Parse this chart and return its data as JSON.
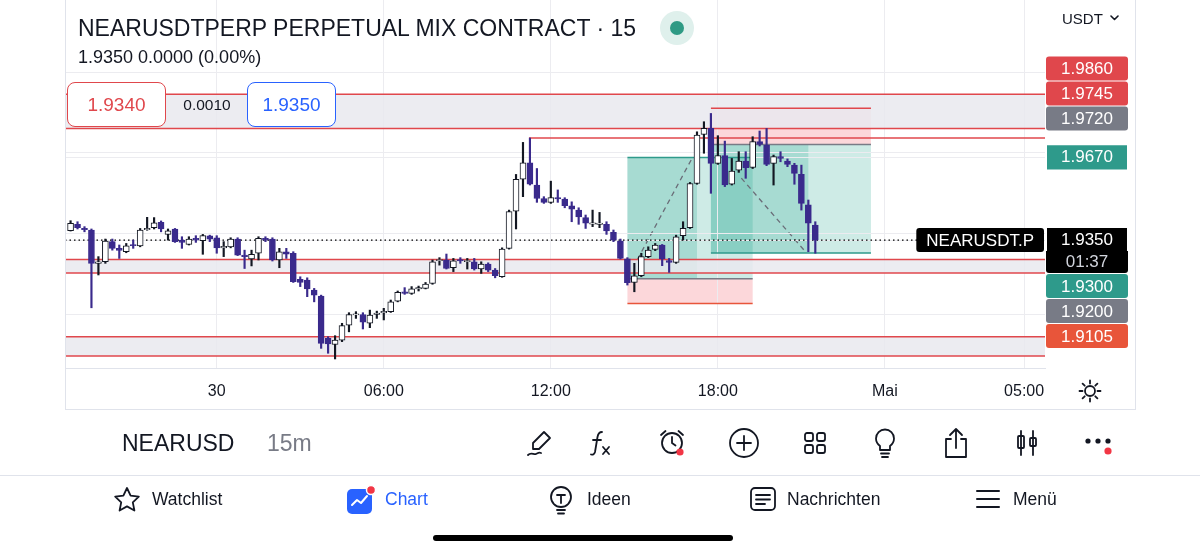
{
  "chart_data": {
    "type": "candlestick",
    "title": "NEARUSDTPERP PERPETUAL MIX CONTRACT · 15",
    "subtitle": "1.9350 0.0000 (0.00%)",
    "annotations": [
      "1.9340",
      "0.0010",
      "1.9350",
      "USDT",
      "NEARUSDT.P",
      "01:37",
      "NEARUSD",
      "15m",
      "Watchlist",
      "Chart",
      "Ideen",
      "Nachrichten",
      "Menü"
    ],
    "x": [
      "--04-29T18:45",
      "--04-29T19:00",
      "--04-29T19:15",
      "--04-29T19:30",
      "--04-29T19:45",
      "--04-29T20:00",
      "--04-29T20:15",
      "--04-29T20:30",
      "--04-29T20:45",
      "--04-29T21:00",
      "--04-29T21:15",
      "--04-29T21:30",
      "--04-29T21:45",
      "--04-29T22:00",
      "--04-29T22:15",
      "--04-29T22:30",
      "--04-29T22:45",
      "--04-29T23:00",
      "--04-29T23:15",
      "--04-29T23:30",
      "--04-29T23:45",
      "--04-30T00:00",
      "--04-30T00:15",
      "--04-30T00:30",
      "--04-30T00:45",
      "--04-30T01:00",
      "--04-30T01:15",
      "--04-30T01:30",
      "--04-30T01:45",
      "--04-30T02:00",
      "--04-30T02:15",
      "--04-30T02:30",
      "--04-30T02:45",
      "--04-30T03:00",
      "--04-30T03:15",
      "--04-30T03:30",
      "--04-30T03:45",
      "--04-30T04:00",
      "--04-30T04:15",
      "--04-30T04:30",
      "--04-30T04:45",
      "--04-30T05:00",
      "--04-30T05:15",
      "--04-30T05:30",
      "--04-30T05:45",
      "--04-30T06:00",
      "--04-30T06:15",
      "--04-30T06:30",
      "--04-30T06:45",
      "--04-30T07:00",
      "--04-30T07:15",
      "--04-30T07:30",
      "--04-30T07:45",
      "--04-30T08:00",
      "--04-30T08:15",
      "--04-30T08:30",
      "--04-30T08:45",
      "--04-30T09:00",
      "--04-30T09:15",
      "--04-30T09:30",
      "--04-30T09:45",
      "--04-30T10:00",
      "--04-30T10:15",
      "--04-30T10:30",
      "--04-30T10:45",
      "--04-30T11:00",
      "--04-30T11:15",
      "--04-30T11:30",
      "--04-30T11:45",
      "--04-30T12:00",
      "--04-30T12:15",
      "--04-30T12:30",
      "--04-30T12:45",
      "--04-30T13:00",
      "--04-30T13:15",
      "--04-30T13:30",
      "--04-30T13:45",
      "--04-30T14:00",
      "--04-30T14:15",
      "--04-30T14:30",
      "--04-30T14:45",
      "--04-30T15:00",
      "--04-30T15:15",
      "--04-30T15:30",
      "--04-30T15:45",
      "--04-30T16:00",
      "--04-30T16:15",
      "--04-30T16:30",
      "--04-30T16:45",
      "--04-30T17:00",
      "--04-30T17:15",
      "--04-30T17:30",
      "--04-30T17:45",
      "--04-30T18:00",
      "--04-30T18:15",
      "--04-30T18:30",
      "--04-30T18:45",
      "--04-30T19:00",
      "--04-30T19:15",
      "--04-30T19:30",
      "--04-30T19:45",
      "--04-30T20:00",
      "--04-30T20:15",
      "--04-30T20:30",
      "--04-30T20:45",
      "--04-30T21:00",
      "--04-30T21:15",
      "--04-30T21:30"
    ],
    "ohlc": [
      [
        1.9386,
        1.9425,
        1.9385,
        1.9415
      ],
      [
        1.9411,
        1.9421,
        1.9393,
        1.9398
      ],
      [
        1.9395,
        1.9402,
        1.9382,
        1.939
      ],
      [
        1.9389,
        1.9393,
        1.9088,
        1.926
      ],
      [
        1.926,
        1.9286,
        1.9215,
        1.9266
      ],
      [
        1.9266,
        1.9354,
        1.926,
        1.9346
      ],
      [
        1.9344,
        1.9354,
        1.9311,
        1.9318
      ],
      [
        1.9318,
        1.9331,
        1.9279,
        1.931
      ],
      [
        1.9305,
        1.9337,
        1.9301,
        1.9328
      ],
      [
        1.9333,
        1.935,
        1.9318,
        1.9328
      ],
      [
        1.9327,
        1.9395,
        1.9324,
        1.9389
      ],
      [
        1.939,
        1.9438,
        1.9388,
        1.9395
      ],
      [
        1.9398,
        1.9437,
        1.9393,
        1.9417
      ],
      [
        1.9419,
        1.9424,
        1.9382,
        1.9393
      ],
      [
        1.9372,
        1.9393,
        1.935,
        1.9386
      ],
      [
        1.9393,
        1.9395,
        1.9341,
        1.9344
      ],
      [
        1.935,
        1.9363,
        1.9318,
        1.9341
      ],
      [
        1.9333,
        1.9363,
        1.9331,
        1.9354
      ],
      [
        1.9357,
        1.9367,
        1.9341,
        1.935
      ],
      [
        1.9348,
        1.9372,
        1.9295,
        1.9367
      ],
      [
        1.9366,
        1.9369,
        1.9344,
        1.9354
      ],
      [
        1.9359,
        1.9367,
        1.9299,
        1.932
      ],
      [
        1.932,
        1.9344,
        1.9286,
        1.9326
      ],
      [
        1.9324,
        1.9359,
        1.932,
        1.9354
      ],
      [
        1.9354,
        1.9359,
        1.929,
        1.9292
      ],
      [
        1.9292,
        1.9311,
        1.924,
        1.9286
      ],
      [
        1.9277,
        1.9311,
        1.925,
        1.9295
      ],
      [
        1.9299,
        1.9363,
        1.9273,
        1.9357
      ],
      [
        1.9357,
        1.9363,
        1.9344,
        1.935
      ],
      [
        1.9354,
        1.9359,
        1.9269,
        1.9273
      ],
      [
        1.9273,
        1.9318,
        1.9243,
        1.9305
      ],
      [
        1.9305,
        1.9318,
        1.9279,
        1.9295
      ],
      [
        1.9299,
        1.9305,
        1.9186,
        1.9189
      ],
      [
        1.9198,
        1.9208,
        1.917,
        1.9186
      ],
      [
        1.9195,
        1.9204,
        1.9131,
        1.9161
      ],
      [
        1.9157,
        1.9163,
        1.9111,
        1.9137
      ],
      [
        1.9133,
        1.9137,
        1.8931,
        1.895
      ],
      [
        1.897,
        1.8976,
        1.8912,
        1.8948
      ],
      [
        1.8946,
        1.898,
        1.889,
        1.8963
      ],
      [
        1.8963,
        1.9028,
        1.8957,
        1.9019
      ],
      [
        1.9021,
        1.9069,
        1.8995,
        1.9062
      ],
      [
        1.906,
        1.9073,
        1.9047,
        1.9065
      ],
      [
        1.9062,
        1.9069,
        1.9006,
        1.9032
      ],
      [
        1.9028,
        1.9079,
        1.9011,
        1.906
      ],
      [
        1.9062,
        1.9075,
        1.9047,
        1.9068
      ],
      [
        1.9068,
        1.9086,
        1.9041,
        1.9074
      ],
      [
        1.9073,
        1.9118,
        1.907,
        1.9111
      ],
      [
        1.9114,
        1.9153,
        1.9111,
        1.9148
      ],
      [
        1.915,
        1.9166,
        1.914,
        1.9144
      ],
      [
        1.9144,
        1.917,
        1.914,
        1.9161
      ],
      [
        1.9161,
        1.9172,
        1.9153,
        1.9166
      ],
      [
        1.9163,
        1.9186,
        1.9161,
        1.918
      ],
      [
        1.9182,
        1.9273,
        1.9179,
        1.9266
      ],
      [
        1.927,
        1.9282,
        1.9253,
        1.9275
      ],
      [
        1.9273,
        1.9296,
        1.9238,
        1.924
      ],
      [
        1.9243,
        1.9279,
        1.9228,
        1.927
      ],
      [
        1.9275,
        1.9282,
        1.926,
        1.9269
      ],
      [
        1.9266,
        1.9279,
        1.9238,
        1.9271
      ],
      [
        1.9266,
        1.9279,
        1.9234,
        1.9238
      ],
      [
        1.9238,
        1.9266,
        1.9221,
        1.9257
      ],
      [
        1.9257,
        1.9262,
        1.9228,
        1.9234
      ],
      [
        1.9234,
        1.924,
        1.9204,
        1.9212
      ],
      [
        1.9208,
        1.932,
        1.9206,
        1.9315
      ],
      [
        1.9318,
        1.9466,
        1.9315,
        1.946
      ],
      [
        1.9462,
        1.9604,
        1.9393,
        1.9585
      ],
      [
        1.9586,
        1.9728,
        1.9518,
        1.9649
      ],
      [
        1.9649,
        1.9745,
        1.9563,
        1.9566
      ],
      [
        1.9563,
        1.9627,
        1.9496,
        1.9511
      ],
      [
        1.9511,
        1.9518,
        1.9492,
        1.9496
      ],
      [
        1.9496,
        1.9578,
        1.9492,
        1.9514
      ],
      [
        1.9514,
        1.9544,
        1.9496,
        1.9509
      ],
      [
        1.9509,
        1.9514,
        1.9475,
        1.9483
      ],
      [
        1.9483,
        1.9498,
        1.9421,
        1.947
      ],
      [
        1.9466,
        1.9475,
        1.9411,
        1.944
      ],
      [
        1.9437,
        1.9447,
        1.9395,
        1.9415
      ],
      [
        1.9412,
        1.9466,
        1.9402,
        1.9417
      ],
      [
        1.9411,
        1.9457,
        1.9398,
        1.9416
      ],
      [
        1.9411,
        1.9421,
        1.9372,
        1.9385
      ],
      [
        1.938,
        1.9389,
        1.9344,
        1.935
      ],
      [
        1.9346,
        1.9354,
        1.9277,
        1.9279
      ],
      [
        1.9277,
        1.9282,
        1.9176,
        1.9185
      ],
      [
        1.9186,
        1.926,
        1.915,
        1.9212
      ],
      [
        1.9212,
        1.9299,
        1.9208,
        1.9286
      ],
      [
        1.9286,
        1.9324,
        1.9282,
        1.9311
      ],
      [
        1.9314,
        1.9337,
        1.9309,
        1.9331
      ],
      [
        1.9331,
        1.9333,
        1.9251,
        1.9277
      ],
      [
        1.9271,
        1.9279,
        1.9225,
        1.9264
      ],
      [
        1.9264,
        1.9369,
        1.926,
        1.9363
      ],
      [
        1.9367,
        1.9421,
        1.935,
        1.9395
      ],
      [
        1.9398,
        1.9573,
        1.9395,
        1.9569
      ],
      [
        1.9569,
        1.9769,
        1.9566,
        1.9756
      ],
      [
        1.9759,
        1.9808,
        1.9686,
        1.9782
      ],
      [
        1.9782,
        1.984,
        1.9531,
        1.9647
      ],
      [
        1.9647,
        1.9754,
        1.9643,
        1.9677
      ],
      [
        1.9677,
        1.9733,
        1.9557,
        1.9563
      ],
      [
        1.9566,
        1.9666,
        1.9563,
        1.9617
      ],
      [
        1.9621,
        1.9692,
        1.9612,
        1.9656
      ],
      [
        1.9656,
        1.9692,
        1.9589,
        1.963
      ],
      [
        1.9631,
        1.975,
        1.9627,
        1.9731
      ],
      [
        1.9731,
        1.9772,
        1.9714,
        1.972
      ],
      [
        1.9718,
        1.9782,
        1.9638,
        1.9643
      ],
      [
        1.9647,
        1.9679,
        1.9563,
        1.9673
      ],
      [
        1.9673,
        1.9692,
        1.9653,
        1.9666
      ],
      [
        1.9656,
        1.9664,
        1.9634,
        1.9643
      ],
      [
        1.964,
        1.9647,
        1.9566,
        1.9608
      ],
      [
        1.9604,
        1.964,
        1.9466,
        1.9492
      ],
      [
        1.9486,
        1.9505,
        1.9305,
        1.9415
      ],
      [
        1.9408,
        1.9421,
        1.9299,
        1.935
      ]
    ],
    "colors": [
      "#131722",
      "#3a2a8c",
      "#3a2a8c",
      "#3a2a8c",
      "#131722",
      "#131722",
      "#3a2a8c",
      "#3a2a8c",
      "#131722",
      "#3a2a8c",
      "#131722",
      "#131722",
      "#131722",
      "#3a2a8c",
      "#131722",
      "#3a2a8c",
      "#3a2a8c",
      "#131722",
      "#3a2a8c",
      "#131722",
      "#3a2a8c",
      "#3a2a8c",
      "#131722",
      "#131722",
      "#3a2a8c",
      "#3a2a8c",
      "#131722",
      "#131722",
      "#3a2a8c",
      "#3a2a8c",
      "#131722",
      "#3a2a8c",
      "#3a2a8c",
      "#3a2a8c",
      "#3a2a8c",
      "#3a2a8c",
      "#3a2a8c",
      "#3a2a8c",
      "#131722",
      "#131722",
      "#131722",
      "#131722",
      "#3a2a8c",
      "#131722",
      "#131722",
      "#131722",
      "#131722",
      "#131722",
      "#3a2a8c",
      "#131722",
      "#131722",
      "#131722",
      "#131722",
      "#131722",
      "#3a2a8c",
      "#131722",
      "#3a2a8c",
      "#131722",
      "#3a2a8c",
      "#131722",
      "#3a2a8c",
      "#3a2a8c",
      "#131722",
      "#131722",
      "#131722",
      "#131722",
      "#3a2a8c",
      "#3a2a8c",
      "#3a2a8c",
      "#131722",
      "#3a2a8c",
      "#3a2a8c",
      "#3a2a8c",
      "#3a2a8c",
      "#3a2a8c",
      "#131722",
      "#131722",
      "#3a2a8c",
      "#3a2a8c",
      "#3a2a8c",
      "#3a2a8c",
      "#131722",
      "#131722",
      "#131722",
      "#131722",
      "#3a2a8c",
      "#3a2a8c",
      "#131722",
      "#131722",
      "#131722",
      "#131722",
      "#131722",
      "#3a2a8c",
      "#131722",
      "#3a2a8c",
      "#131722",
      "#131722",
      "#3a2a8c",
      "#131722",
      "#3a2a8c",
      "#3a2a8c",
      "#131722",
      "#3a2a8c",
      "#3a2a8c",
      "#3a2a8c",
      "#3a2a8c",
      "#3a2a8c",
      "#3a2a8c"
    ],
    "xlim": [
      "--04-29T18:33",
      "--05-01T05:45"
    ],
    "xticks": [
      {
        "value": "--04-30",
        "label": "30"
      },
      {
        "value": "--04-30T06:00",
        "label": "06:00"
      },
      {
        "value": "--04-30T12:00",
        "label": "12:00"
      },
      {
        "value": "--04-30T18:00",
        "label": "18:00"
      },
      {
        "value": "--05-01",
        "label": "Mai"
      },
      {
        "value": "--05-01T05:00",
        "label": "05:00"
      }
    ],
    "ylim": [
      1.8855,
      2.0279
    ],
    "yticks": [
      {
        "value": 2,
        "label": null
      },
      {
        "value": 1.9688,
        "label": null
      },
      {
        "value": 1.967,
        "label": "1.9670"
      },
      {
        "value": 1.9375,
        "label": null
      },
      {
        "value": 1.935,
        "label": "1.9350"
      },
      {
        "value": 1.9063,
        "label": null
      }
    ],
    "grid": true,
    "legend": "right",
    "bands": [
      {
        "axis": "y",
        "from": 1.9782,
        "to": 1.9914,
        "color": "#e9e9ee"
      },
      {
        "axis": "y",
        "from": 1.9223,
        "to": 1.9275,
        "color": "#e9e9ee"
      },
      {
        "axis": "y",
        "from": 1.8901,
        "to": 1.8976,
        "color": "#e9e9ee"
      }
    ],
    "ref_lines": [
      {
        "axis": "y",
        "value": 1.986,
        "label": "1.9860",
        "color": "#e0474c",
        "line_style": "solid"
      },
      {
        "axis": "y",
        "value": 1.9745,
        "label": "1.9745",
        "color": "#e0474c",
        "line_style": "solid"
      },
      {
        "axis": "y",
        "value": 1.972,
        "label": "1.9720",
        "color": "#787b86",
        "line_style": "solid"
      },
      {
        "axis": "y",
        "value": 1.967,
        "color": "#2e9a8b",
        "line_style": "solid"
      },
      {
        "axis": "y",
        "value": 1.935,
        "color": "#000000",
        "line_style": "dotted"
      },
      {
        "axis": "y",
        "value": 1.93,
        "label": "1.9300",
        "color": "#2e9a8b",
        "line_style": "solid"
      },
      {
        "axis": "y",
        "value": 1.92,
        "label": "1.9200",
        "color": "#787b86",
        "line_style": "solid"
      },
      {
        "axis": "y",
        "value": 1.9105,
        "label": "1.9105",
        "color": "#e8553a",
        "line_style": "solid"
      },
      {
        "axis": "y",
        "value": 1.9914,
        "color": "#e0474c",
        "line_style": "solid"
      },
      {
        "axis": "y",
        "value": 1.9782,
        "color": "#e0474c",
        "line_style": "solid"
      },
      {
        "axis": "y",
        "value": 1.9275,
        "color": "#e0474c",
        "line_style": "solid"
      },
      {
        "axis": "y",
        "value": 1.9223,
        "color": "#e0474c",
        "line_style": "solid"
      },
      {
        "axis": "y",
        "value": 1.8976,
        "color": "#e0474c",
        "line_style": "solid"
      },
      {
        "axis": "y",
        "value": 1.8901,
        "color": "#e0474c",
        "line_style": "solid"
      }
    ]
  }
}
